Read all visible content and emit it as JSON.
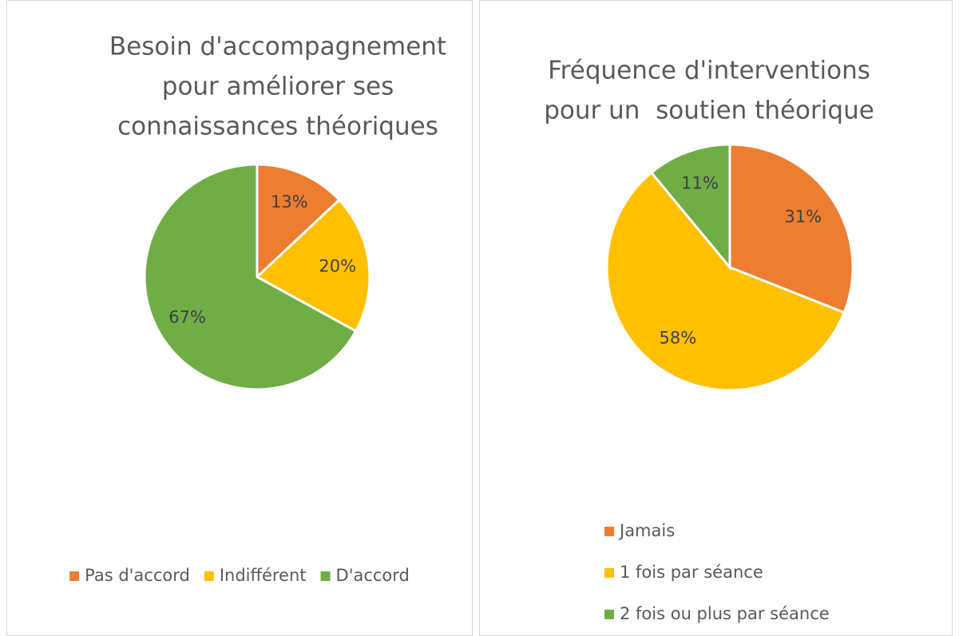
{
  "chart_data": [
    {
      "type": "pie",
      "title": [
        "Besoin d'accompagnement",
        "pour améliorer ses",
        "connaissances théoriques"
      ],
      "categories": [
        "Pas d'accord",
        "Indifférent",
        "D'accord"
      ],
      "values": [
        13,
        20,
        67
      ],
      "value_labels": [
        "13%",
        "20%",
        "67%"
      ],
      "colors": [
        "#ED7D31",
        "#FFC000",
        "#70AD47"
      ],
      "legend": "bottom"
    },
    {
      "type": "pie",
      "title": [
        "Fréquence d'interventions",
        "pour un  soutien théorique"
      ],
      "categories": [
        "Jamais",
        "1 fois par séance",
        "2 fois ou plus par séance"
      ],
      "values": [
        31,
        58,
        11
      ],
      "value_labels": [
        "31%",
        "58%",
        "11%"
      ],
      "colors": [
        "#ED7D31",
        "#FFC000",
        "#70AD47"
      ],
      "legend": "bottom-left"
    }
  ]
}
